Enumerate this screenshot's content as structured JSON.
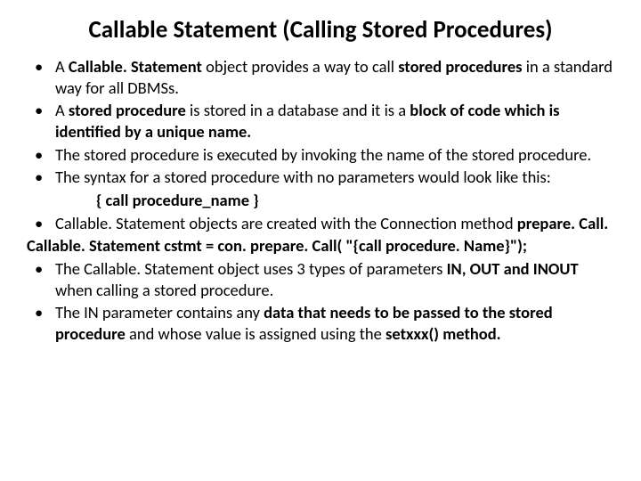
{
  "title": "Callable Statement (Calling Stored Procedures)",
  "bullets": {
    "b1": {
      "pre": "A ",
      "strong1": "Callable. Statement",
      "mid": " object provides a way to call ",
      "strong2": "stored procedures",
      "post": " in a standard way for all DBMSs."
    },
    "b2": {
      "pre": " A ",
      "strong1": "stored procedure",
      "mid": " is stored in a database and it is a ",
      "strong2": "block of code which is identified by a unique name."
    },
    "b3": "The stored procedure is executed by invoking the name of the stored procedure.",
    "b4": "The syntax for a stored procedure with no parameters would look like this:",
    "syntax": "{ call  procedure_name }",
    "b5": {
      "pre": "Callable. Statement objects are created with the Connection method ",
      "strong1": "prepare. Call."
    },
    "code": "Callable. Statement  cstmt = con. prepare. Call( \"{call  procedure. Name}\");",
    "b6": {
      "pre": "The Callable. Statement object uses 3 types of parameters ",
      "strong1": "IN, OUT and INOUT",
      "post": " when calling a stored procedure."
    },
    "b7": {
      "pre": "The IN parameter contains any ",
      "strong1": "data that needs to be passed to the stored procedure",
      "mid": " and whose value is assigned using the ",
      "strong2": "setxxx() method."
    }
  }
}
